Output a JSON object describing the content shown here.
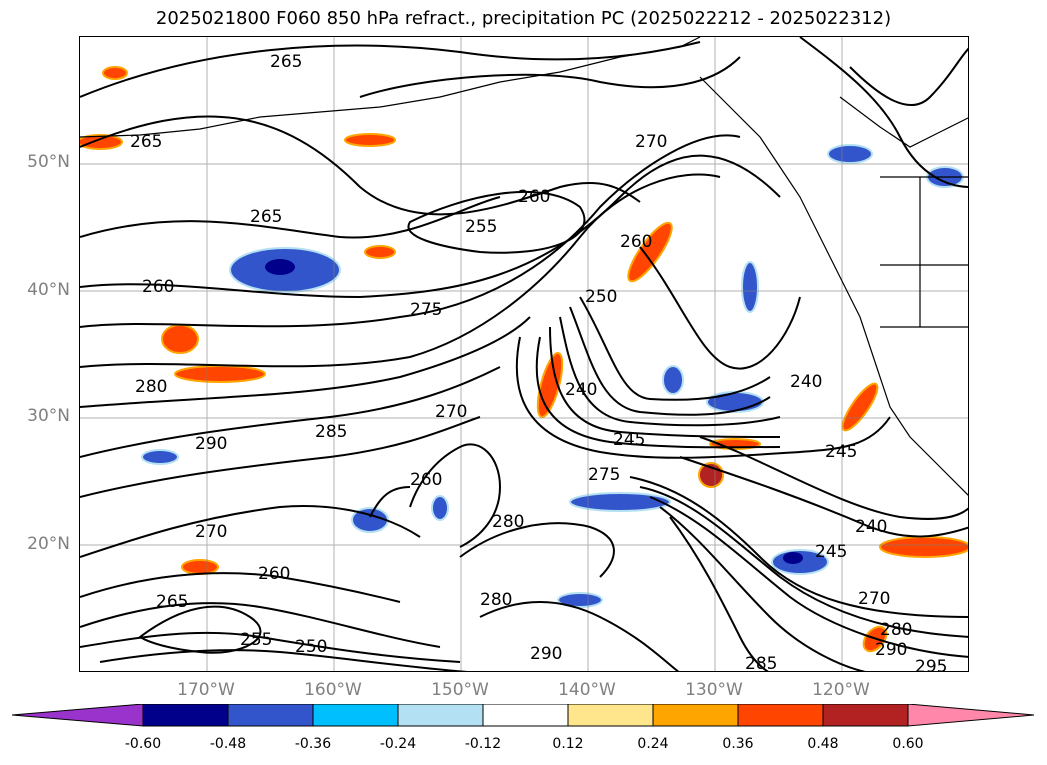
{
  "title": "2025021800 F060 850 hPa refract., precipitation PC (2025022212 - 2025022312)",
  "lat_labels": [
    "50°N",
    "40°N",
    "30°N",
    "20°N"
  ],
  "lon_labels": [
    "170°W",
    "160°W",
    "150°W",
    "140°W",
    "130°W",
    "120°W"
  ],
  "contour_labels": [
    "265",
    "265",
    "260",
    "255",
    "265",
    "260",
    "275",
    "260",
    "280",
    "270",
    "285",
    "290",
    "250",
    "240",
    "270",
    "240",
    "245",
    "245",
    "275",
    "280",
    "260",
    "270",
    "240",
    "245",
    "265",
    "280",
    "250",
    "260",
    "255",
    "290",
    "285",
    "290",
    "295",
    "270",
    "280"
  ],
  "colorbar": {
    "ticks": [
      "-0.60",
      "-0.48",
      "-0.36",
      "-0.24",
      "-0.12",
      "0.12",
      "0.24",
      "0.36",
      "0.48",
      "0.60"
    ],
    "colors": [
      "#9933cc",
      "#00008b",
      "#3355cc",
      "#00bfff",
      "#b3e0f2",
      "#ffffff",
      "#ffe68c",
      "#ffa500",
      "#ff4500",
      "#b22222",
      "#ff88aa"
    ]
  },
  "colors": {
    "contour": "#000000",
    "grid": "#808080",
    "coast": "#000000"
  }
}
